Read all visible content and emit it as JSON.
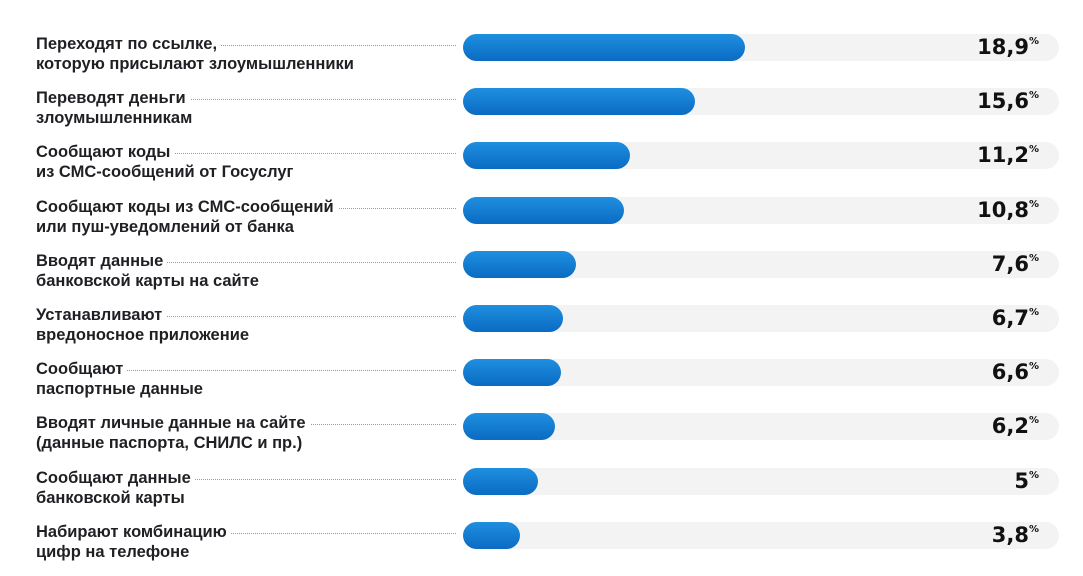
{
  "chart_data": {
    "type": "bar",
    "orientation": "horizontal",
    "unit": "%",
    "xlim": [
      0,
      40
    ],
    "categories": [
      [
        "Переходят по ссылке,",
        "которую присылают злоумышленники"
      ],
      [
        "Переводят деньги",
        "злоумышленникам"
      ],
      [
        "Сообщают коды",
        "из СМС-сообщений от Госуслуг"
      ],
      [
        "Сообщают коды из СМС-сообщений",
        "или пуш-уведомлений от банка"
      ],
      [
        "Вводят данные",
        "банковской карты на сайте"
      ],
      [
        "Устанавливают",
        "вредоносное приложение"
      ],
      [
        "Сообщают",
        "паспортные данные"
      ],
      [
        "Вводят личные данные на сайте",
        "(данные паспорта, СНИЛС и пр.)"
      ],
      [
        "Сообщают данные",
        "банковской карты"
      ],
      [
        "Набирают комбинацию",
        "цифр на телефоне"
      ]
    ],
    "values": [
      18.9,
      15.6,
      11.2,
      10.8,
      7.6,
      6.7,
      6.6,
      6.2,
      5,
      3.8
    ],
    "value_labels": [
      "18,9",
      "15,6",
      "11,2",
      "10,8",
      "7,6",
      "6,7",
      "6,6",
      "6,2",
      "5",
      "3,8"
    ],
    "legend": "none",
    "grid": false
  },
  "colors": {
    "bar": "#0f78d0",
    "track": "#f3f3f4",
    "text": "#1f1f24"
  }
}
